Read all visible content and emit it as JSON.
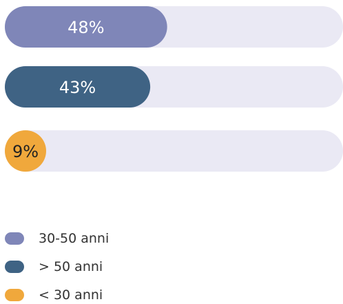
{
  "chart_data": {
    "type": "bar",
    "orientation": "horizontal",
    "categories": [
      "30-50 anni",
      "> 50 anni",
      "< 30 anni"
    ],
    "values": [
      48,
      43,
      9
    ],
    "value_labels": [
      "48%",
      "43%",
      "9%"
    ],
    "colors": [
      "#7f86b8",
      "#3f6384",
      "#f0a83c"
    ],
    "track_color": "#eae9f4",
    "xlim": [
      0,
      100
    ]
  }
}
